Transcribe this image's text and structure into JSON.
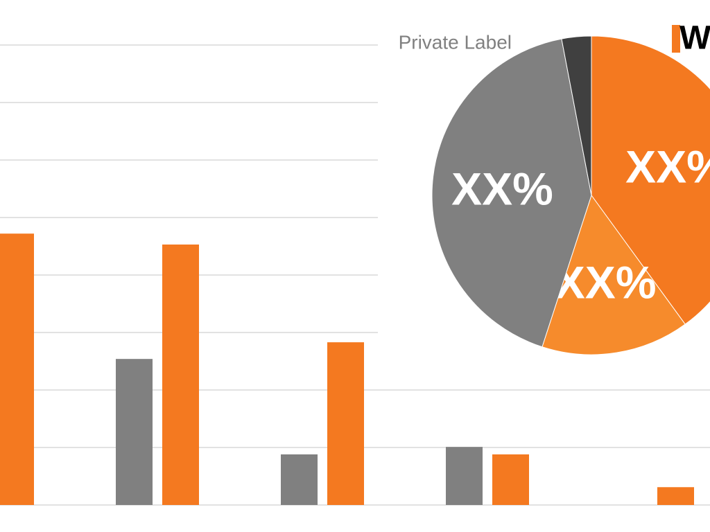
{
  "logo": "W",
  "chart_data": [
    {
      "type": "bar",
      "categories": [
        null,
        null,
        null,
        null,
        null
      ],
      "series": [
        {
          "color": "#808080",
          "values": [
            null,
            2.54,
            0.88,
            1.01,
            null
          ]
        },
        {
          "color": "#f47920",
          "values": [
            4.72,
            4.53,
            2.83,
            0.88,
            0.31
          ]
        }
      ],
      "ylim": [
        0,
        8
      ],
      "yticks": [
        0,
        1,
        2,
        3,
        4,
        5,
        6,
        7,
        8
      ],
      "grid": true
    },
    {
      "type": "pie",
      "categories": [
        null,
        null,
        null,
        "Private Label"
      ],
      "values": [
        40,
        15,
        42,
        3
      ],
      "value_labels": [
        "XX%",
        "XX%",
        "XX%",
        null
      ],
      "colors": [
        "#f47920",
        "#f68b2c",
        "#808080",
        "#404040"
      ]
    }
  ]
}
